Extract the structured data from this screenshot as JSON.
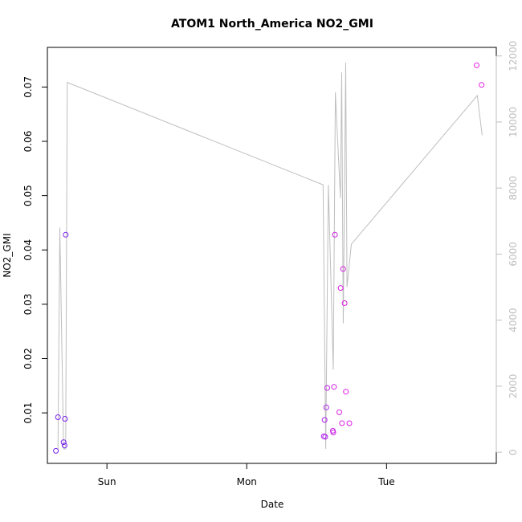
{
  "chart_data": {
    "type": "scatter",
    "title": "ATOM1 North_America NO2_GMI",
    "xlabel": "Date",
    "ylabel": "NO2_GMI",
    "x_ticks": [
      {
        "label": "Sun",
        "value": 1.0
      },
      {
        "label": "Mon",
        "value": 2.0
      },
      {
        "label": "Tue",
        "value": 3.0
      }
    ],
    "xlim": [
      0.574,
      3.785
    ],
    "ylim": [
      0.0007,
      0.0773
    ],
    "y_ticks": [
      0.01,
      0.02,
      0.03,
      0.04,
      0.05,
      0.06,
      0.07
    ],
    "y2lim": [
      -337,
      12260
    ],
    "y2_ticks": [
      0,
      2000,
      4000,
      6000,
      8000,
      10000,
      12000
    ],
    "grid": false,
    "colors": {
      "line": "#bebebe",
      "point_low": "#7a22ee",
      "point_high": "#e61ce6",
      "axis": "#000000",
      "right_axis": "#bebebe"
    },
    "points": [
      {
        "x": 0.635,
        "y": 0.003,
        "color": "#7a22ee"
      },
      {
        "x": 0.65,
        "y": 0.0092,
        "color": "#7a22ee"
      },
      {
        "x": 0.69,
        "y": 0.0046,
        "color": "#7a22ee"
      },
      {
        "x": 0.697,
        "y": 0.004,
        "color": "#7a22ee"
      },
      {
        "x": 0.7,
        "y": 0.0089,
        "color": "#7a22ee"
      },
      {
        "x": 0.705,
        "y": 0.0428,
        "color": "#7a22ee"
      },
      {
        "x": 2.551,
        "y": 0.0057,
        "color": "#b020ee"
      },
      {
        "x": 2.557,
        "y": 0.0087,
        "color": "#b020ee"
      },
      {
        "x": 2.561,
        "y": 0.0056,
        "color": "#b020ee"
      },
      {
        "x": 2.569,
        "y": 0.011,
        "color": "#b020ee"
      },
      {
        "x": 2.576,
        "y": 0.0146,
        "color": "#c020e6"
      },
      {
        "x": 2.616,
        "y": 0.0067,
        "color": "#c820e6"
      },
      {
        "x": 2.619,
        "y": 0.0064,
        "color": "#c820e6"
      },
      {
        "x": 2.624,
        "y": 0.0148,
        "color": "#d020e6"
      },
      {
        "x": 2.631,
        "y": 0.0428,
        "color": "#d020e6"
      },
      {
        "x": 2.662,
        "y": 0.0101,
        "color": "#d820e6"
      },
      {
        "x": 2.672,
        "y": 0.033,
        "color": "#d820e6"
      },
      {
        "x": 2.681,
        "y": 0.0081,
        "color": "#dc20e6"
      },
      {
        "x": 2.689,
        "y": 0.0365,
        "color": "#dc20e6"
      },
      {
        "x": 2.7,
        "y": 0.0302,
        "color": "#e01ce6"
      },
      {
        "x": 2.709,
        "y": 0.0139,
        "color": "#e01ce6"
      },
      {
        "x": 2.734,
        "y": 0.0081,
        "color": "#e01ce6"
      },
      {
        "x": 3.644,
        "y": 0.074,
        "color": "#e61ce6"
      },
      {
        "x": 3.68,
        "y": 0.0704,
        "color": "#e61ce6"
      }
    ],
    "altitude_line": [
      {
        "x": 0.65,
        "y2": 100
      },
      {
        "x": 0.663,
        "y2": 6800
      },
      {
        "x": 0.69,
        "y2": 100
      },
      {
        "x": 0.705,
        "y2": 100
      },
      {
        "x": 0.716,
        "y2": 11200
      },
      {
        "x": 2.546,
        "y2": 8100
      },
      {
        "x": 2.565,
        "y2": 100
      },
      {
        "x": 2.584,
        "y2": 8100
      },
      {
        "x": 2.619,
        "y2": 2500
      },
      {
        "x": 2.634,
        "y2": 10900
      },
      {
        "x": 2.67,
        "y2": 7700
      },
      {
        "x": 2.679,
        "y2": 11500
      },
      {
        "x": 2.69,
        "y2": 3900
      },
      {
        "x": 2.708,
        "y2": 11800
      },
      {
        "x": 2.717,
        "y2": 5000
      },
      {
        "x": 2.748,
        "y2": 6300
      },
      {
        "x": 3.649,
        "y2": 10800
      },
      {
        "x": 3.684,
        "y2": 9600
      }
    ]
  }
}
